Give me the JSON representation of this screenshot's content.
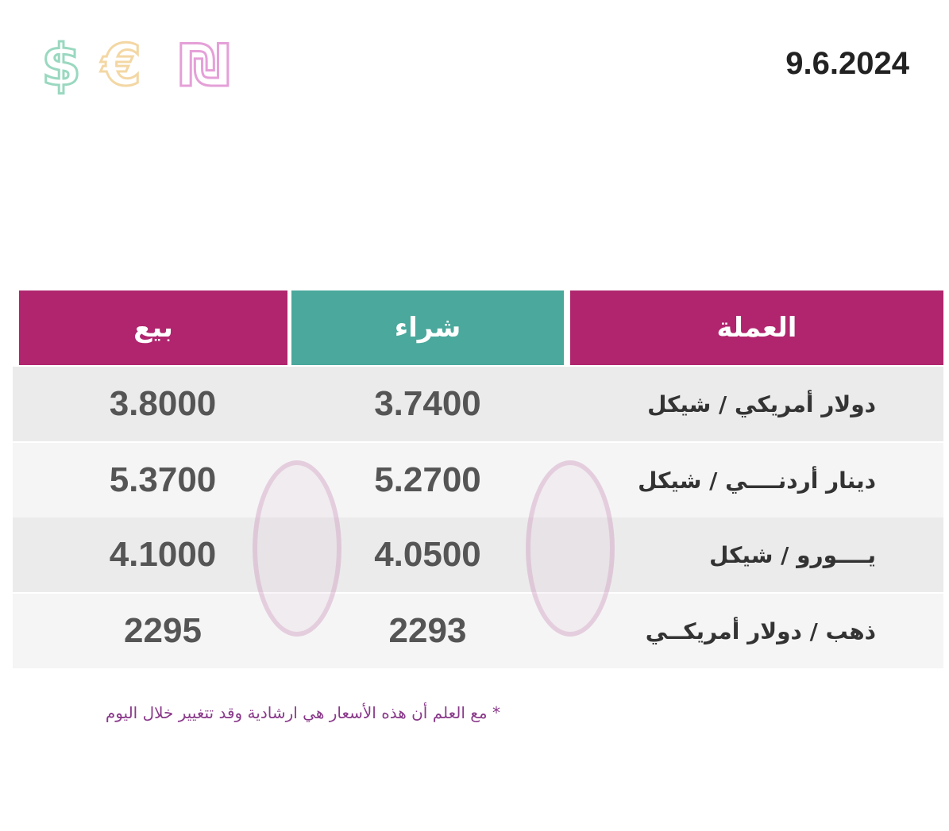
{
  "header": {
    "icons": [
      "$",
      "€",
      "₪"
    ],
    "date": "9.6.2024"
  },
  "table": {
    "columns": [
      "العملة",
      "شراء",
      "بيع"
    ],
    "rows": [
      [
        "دولار أمريكي / شيكل",
        "3.7400",
        "3.8000"
      ],
      [
        "دينار أردنــــي / شيكل",
        "5.2700",
        "5.3700"
      ],
      [
        "يــــورو / شيكل",
        "4.0500",
        "4.1000"
      ],
      [
        "ذهب / دولار أمريكــي",
        "2293",
        "2295"
      ]
    ]
  },
  "footnote": "* مع العلم أن هذه الأسعار هي ارشادية وقد تتغيير خلال اليوم"
}
